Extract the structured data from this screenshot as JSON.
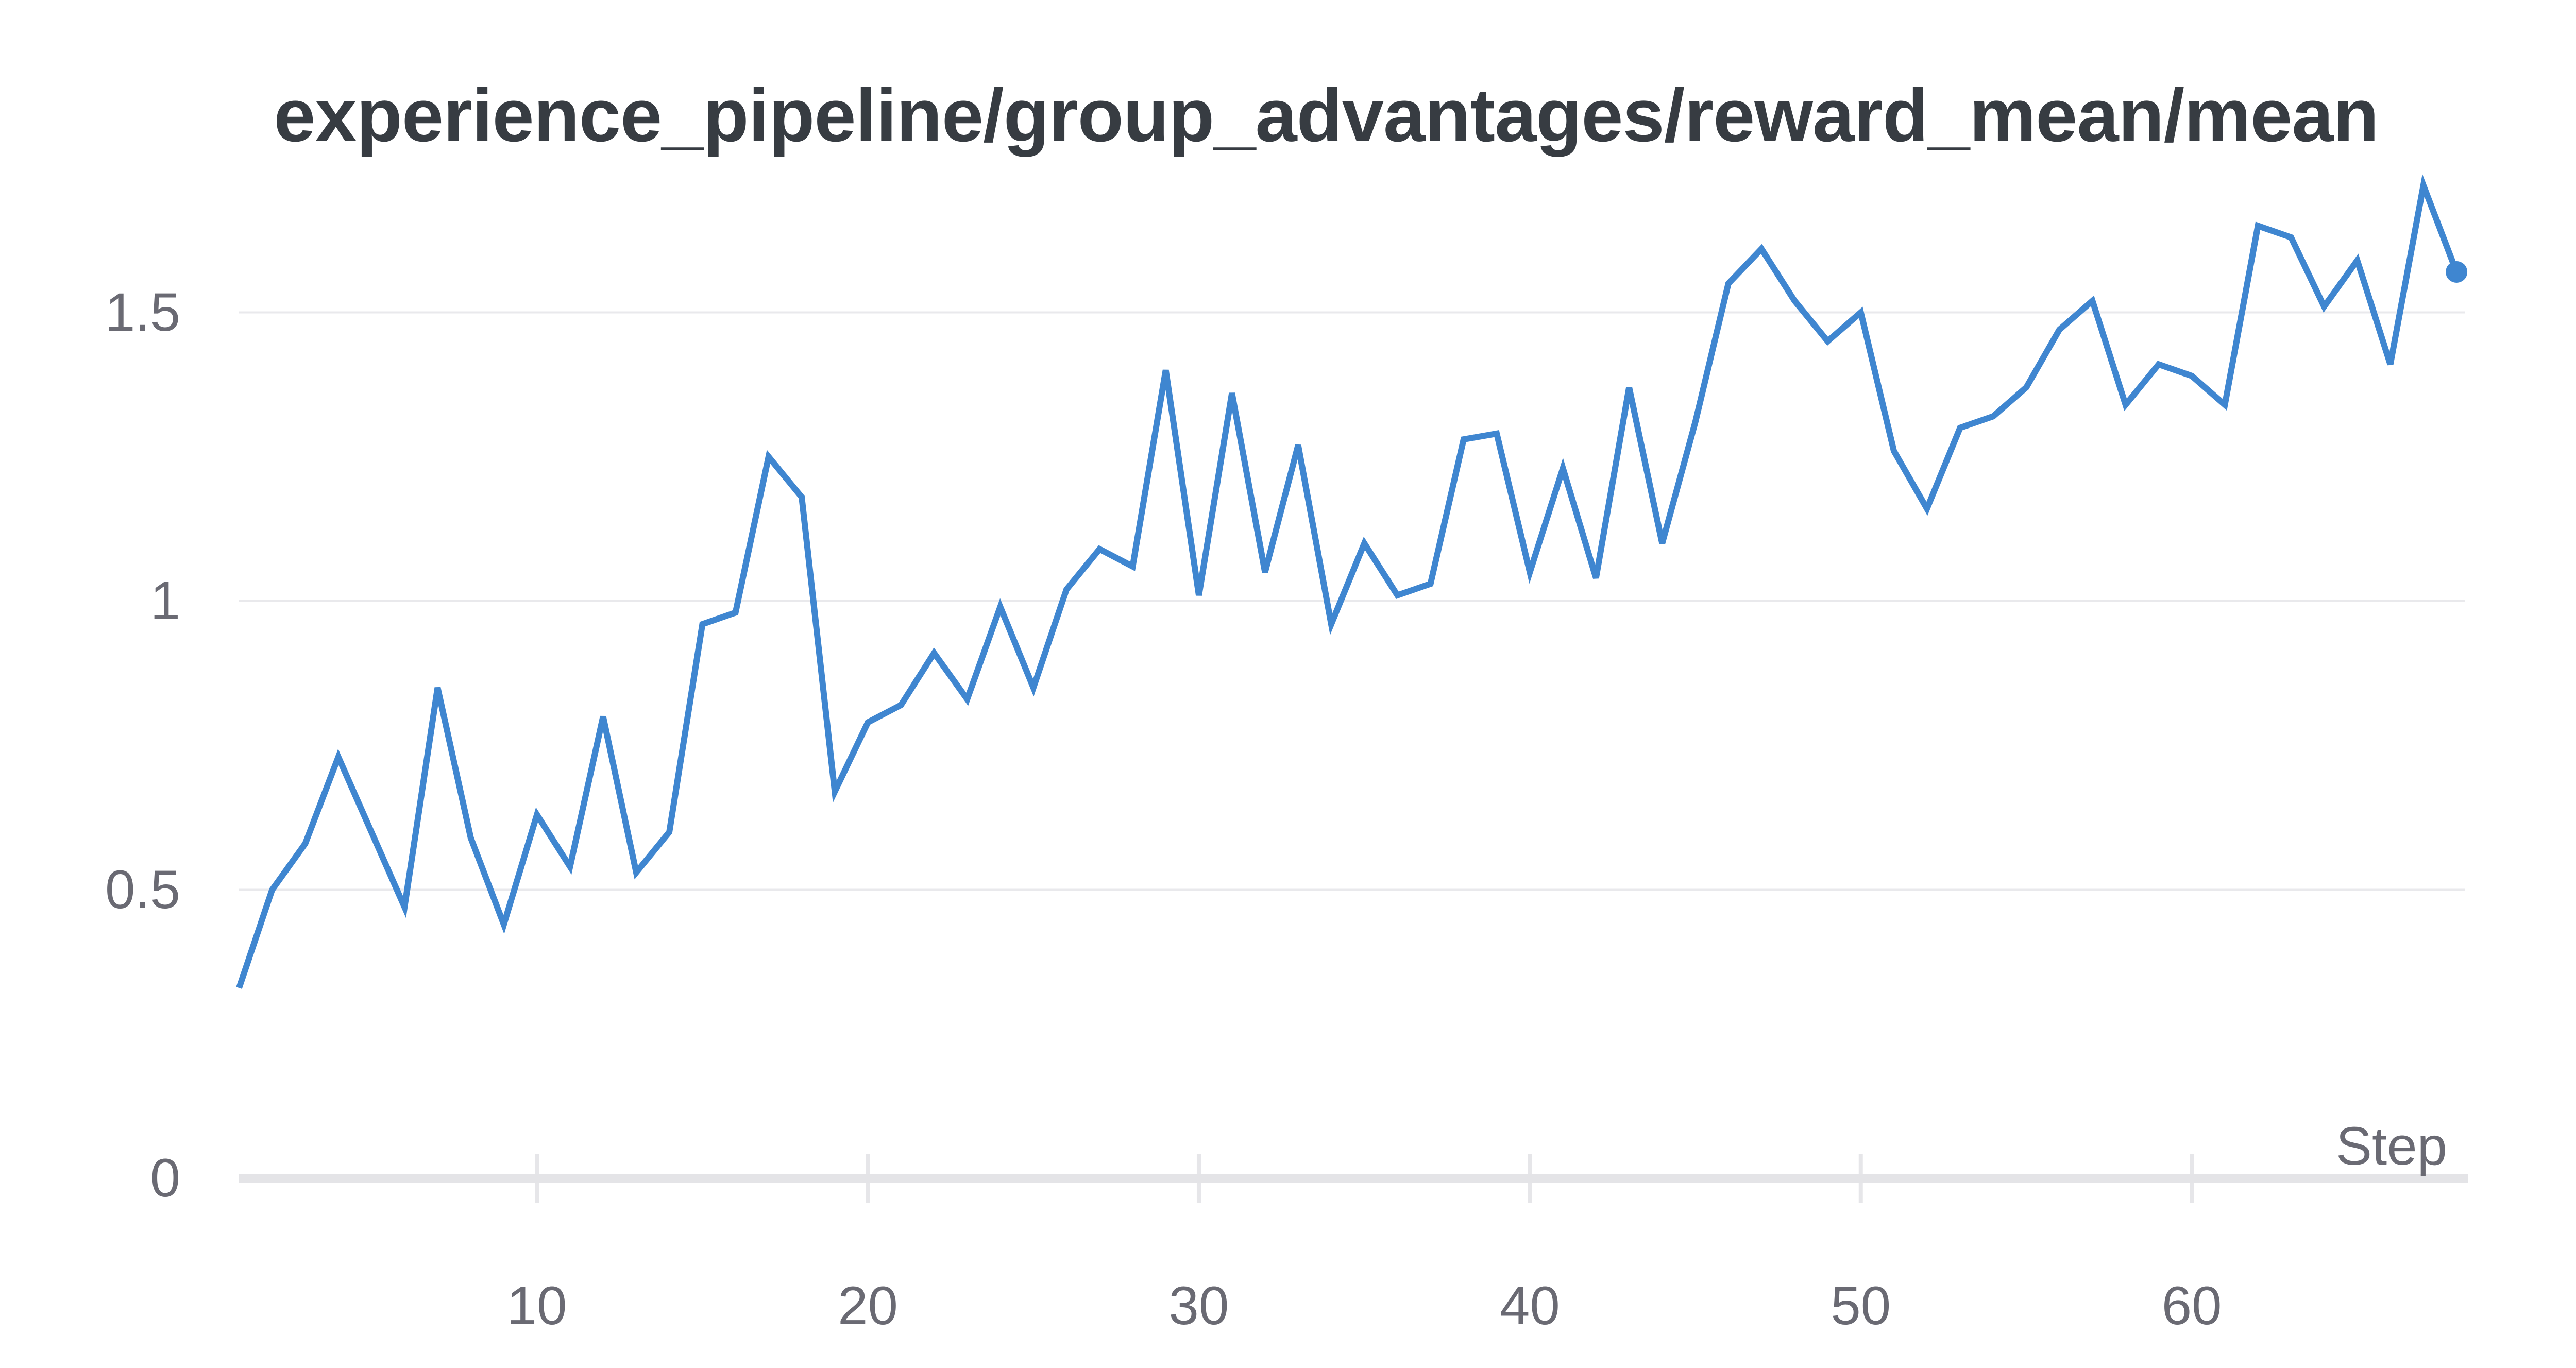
{
  "chart": {
    "title": "experience_pipeline/group_advantages/reward_mean/mean",
    "x_axis_label": "Step"
  },
  "colors": {
    "line": "#3f86d0",
    "end_dot": "#3f86d0",
    "title_text": "#373c42",
    "tick_text": "#6a6a73",
    "gridline": "#e9e9ec",
    "axis_baseline": "#e4e4e7",
    "tick_mark": "#e6e6e9",
    "background": "#ffffff"
  },
  "chart_data": {
    "type": "line",
    "title": "experience_pipeline/group_advantages/reward_mean/mean",
    "xlabel": "Step",
    "ylabel": "",
    "legend": "none",
    "grid": "horizontal",
    "xlim": [
      1,
      68
    ],
    "ylim": [
      0,
      1.73
    ],
    "x_ticks": [
      10,
      20,
      30,
      40,
      50,
      60
    ],
    "x_tick_labels": [
      "10",
      "20",
      "30",
      "40",
      "50",
      "60"
    ],
    "y_ticks": [
      0,
      0.5,
      1,
      1.5
    ],
    "y_tick_labels": [
      "0",
      "0.5",
      "1",
      "1.5"
    ],
    "end_marker": "dot",
    "x": [
      1,
      2,
      3,
      4,
      5,
      6,
      7,
      8,
      9,
      10,
      11,
      12,
      13,
      14,
      15,
      16,
      17,
      18,
      19,
      20,
      21,
      22,
      23,
      24,
      25,
      26,
      27,
      28,
      29,
      30,
      31,
      32,
      33,
      34,
      35,
      36,
      37,
      38,
      39,
      40,
      41,
      42,
      43,
      44,
      45,
      46,
      47,
      48,
      49,
      50,
      51,
      52,
      53,
      54,
      55,
      56,
      57,
      58,
      59,
      60,
      61,
      62,
      63,
      64,
      65,
      66,
      67,
      68
    ],
    "values": [
      0.33,
      0.5,
      0.58,
      0.73,
      0.6,
      0.47,
      0.85,
      0.59,
      0.44,
      0.63,
      0.54,
      0.8,
      0.53,
      0.6,
      0.96,
      0.98,
      1.25,
      1.18,
      0.67,
      0.79,
      0.82,
      0.91,
      0.83,
      0.99,
      0.85,
      1.02,
      1.09,
      1.06,
      1.4,
      1.01,
      1.36,
      1.05,
      1.27,
      0.96,
      1.1,
      1.01,
      1.03,
      1.28,
      1.29,
      1.05,
      1.23,
      1.04,
      1.37,
      1.1,
      1.31,
      1.55,
      1.61,
      1.52,
      1.45,
      1.5,
      1.26,
      1.16,
      1.3,
      1.32,
      1.37,
      1.47,
      1.52,
      1.34,
      1.41,
      1.39,
      1.34,
      1.65,
      1.63,
      1.51,
      1.59,
      1.41,
      1.72,
      1.57
    ]
  }
}
